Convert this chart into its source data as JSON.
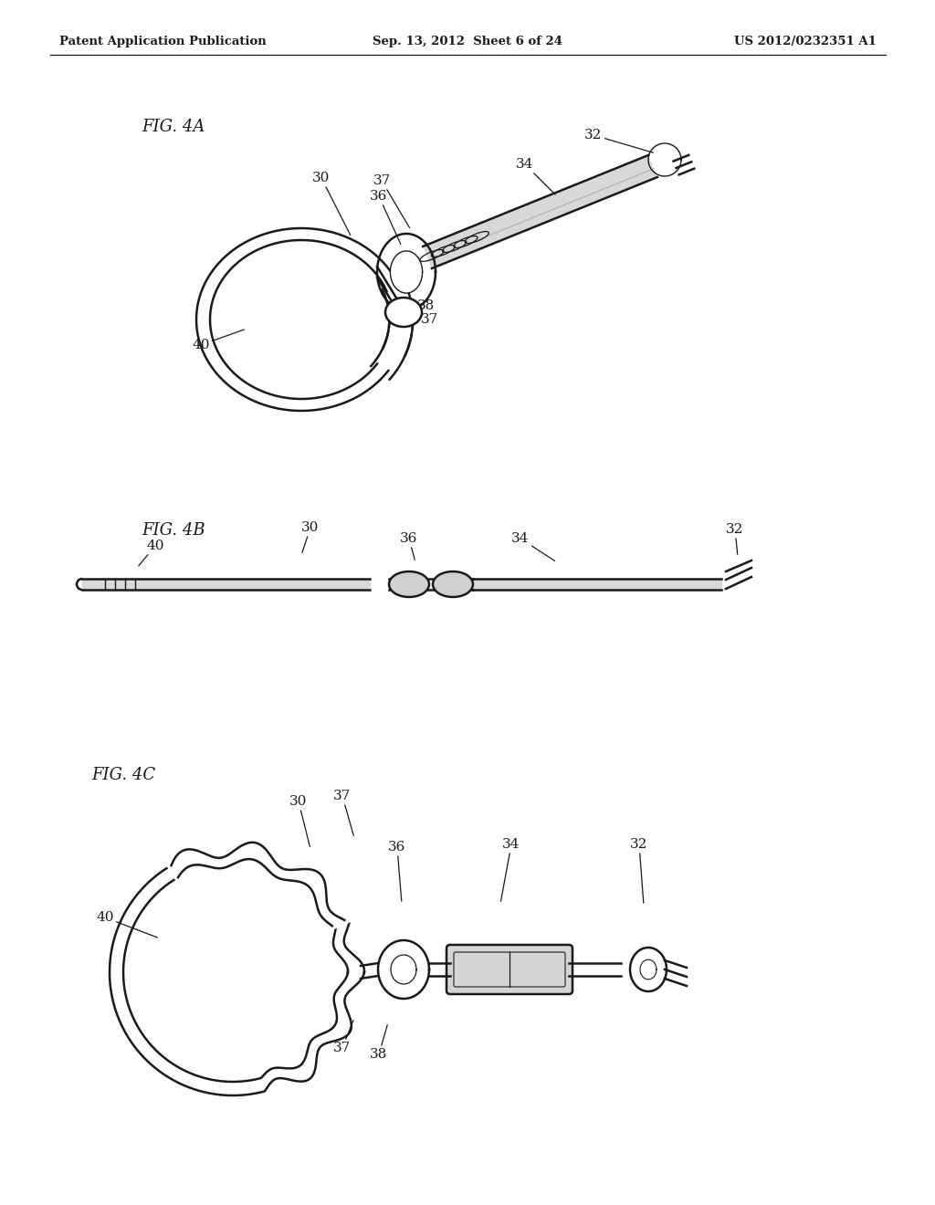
{
  "bg_color": "#ffffff",
  "line_color": "#1a1a1a",
  "header_left": "Patent Application Publication",
  "header_center": "Sep. 13, 2012  Sheet 6 of 24",
  "header_right": "US 2012/0232351 A1",
  "fig4a_label": "FIG. 4A",
  "fig4b_label": "FIG. 4B",
  "fig4c_label": "FIG. 4C"
}
